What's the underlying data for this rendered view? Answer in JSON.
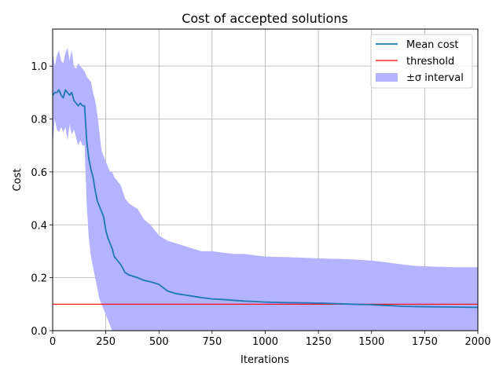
{
  "chart_data": {
    "type": "line",
    "title": "Cost of accepted solutions",
    "xlabel": "Iterations",
    "ylabel": "Cost",
    "xlim": [
      0,
      2000
    ],
    "ylim": [
      0,
      1.14
    ],
    "xticks": [
      0,
      250,
      500,
      750,
      1000,
      1250,
      1500,
      1750,
      2000
    ],
    "yticks": [
      0.0,
      0.2,
      0.4,
      0.6,
      0.8,
      1.0
    ],
    "xtick_labels": [
      "0",
      "250",
      "500",
      "750",
      "1000",
      "1250",
      "1500",
      "1750",
      "2000"
    ],
    "ytick_labels": [
      "0.0",
      "0.2",
      "0.4",
      "0.6",
      "0.8",
      "1.0"
    ],
    "grid": true,
    "legend_position": "top-right",
    "legend": {
      "mean": "Mean cost",
      "threshold": "threshold",
      "band": "±σ interval"
    },
    "colors": {
      "mean": "#1f77b4",
      "threshold": "#ff0000",
      "band": "#b3b3ff"
    },
    "threshold": 0.1,
    "series": [
      {
        "name": "Mean cost",
        "x": [
          0,
          10,
          20,
          30,
          40,
          50,
          60,
          70,
          80,
          90,
          100,
          110,
          120,
          130,
          140,
          150,
          160,
          170,
          180,
          190,
          200,
          210,
          220,
          230,
          240,
          250,
          260,
          270,
          280,
          290,
          300,
          320,
          340,
          360,
          380,
          400,
          430,
          460,
          500,
          540,
          580,
          620,
          660,
          700,
          750,
          800,
          850,
          900,
          950,
          1000,
          1100,
          1200,
          1300,
          1400,
          1500,
          1550,
          1600,
          1650,
          1700,
          1800,
          1900,
          2000
        ],
        "y": [
          0.89,
          0.9,
          0.9,
          0.91,
          0.89,
          0.88,
          0.91,
          0.9,
          0.89,
          0.9,
          0.87,
          0.86,
          0.85,
          0.86,
          0.85,
          0.85,
          0.72,
          0.65,
          0.61,
          0.58,
          0.53,
          0.49,
          0.47,
          0.45,
          0.43,
          0.38,
          0.35,
          0.33,
          0.31,
          0.28,
          0.27,
          0.25,
          0.22,
          0.21,
          0.205,
          0.2,
          0.19,
          0.185,
          0.175,
          0.15,
          0.14,
          0.135,
          0.13,
          0.125,
          0.12,
          0.118,
          0.115,
          0.112,
          0.11,
          0.108,
          0.106,
          0.105,
          0.103,
          0.1,
          0.098,
          0.096,
          0.094,
          0.092,
          0.091,
          0.09,
          0.089,
          0.088
        ]
      },
      {
        "name": "±σ interval",
        "x": [
          0,
          10,
          20,
          30,
          40,
          50,
          60,
          70,
          80,
          90,
          100,
          110,
          120,
          130,
          140,
          150,
          160,
          170,
          180,
          190,
          200,
          210,
          220,
          230,
          240,
          250,
          260,
          270,
          280,
          290,
          300,
          320,
          340,
          360,
          380,
          400,
          430,
          460,
          500,
          540,
          580,
          620,
          660,
          700,
          750,
          800,
          850,
          900,
          950,
          1000,
          1100,
          1200,
          1300,
          1400,
          1500,
          1550,
          1600,
          1650,
          1700,
          1800,
          1900,
          2000
        ],
        "upper": [
          1.05,
          1.0,
          1.04,
          1.06,
          1.02,
          1.01,
          1.05,
          1.07,
          1.02,
          1.06,
          1.0,
          0.99,
          1.01,
          1.0,
          0.99,
          0.98,
          0.96,
          0.95,
          0.94,
          0.9,
          0.87,
          0.82,
          0.75,
          0.68,
          0.66,
          0.64,
          0.62,
          0.6,
          0.6,
          0.58,
          0.57,
          0.55,
          0.5,
          0.48,
          0.47,
          0.46,
          0.42,
          0.4,
          0.36,
          0.34,
          0.33,
          0.32,
          0.31,
          0.3,
          0.3,
          0.295,
          0.29,
          0.29,
          0.285,
          0.28,
          0.278,
          0.275,
          0.272,
          0.27,
          0.265,
          0.26,
          0.255,
          0.25,
          0.245,
          0.242,
          0.24,
          0.24
        ],
        "lower": [
          0.7,
          0.8,
          0.76,
          0.75,
          0.77,
          0.75,
          0.77,
          0.72,
          0.78,
          0.74,
          0.76,
          0.73,
          0.7,
          0.72,
          0.7,
          0.7,
          0.48,
          0.35,
          0.28,
          0.24,
          0.2,
          0.16,
          0.12,
          0.1,
          0.08,
          0.06,
          0.04,
          0.02,
          0.0,
          0.0,
          0.0,
          0.0,
          0.0,
          0.0,
          0.0,
          0.0,
          0.0,
          0.0,
          0.0,
          0.0,
          0.0,
          0.0,
          0.0,
          0.0,
          0.0,
          0.0,
          0.0,
          0.0,
          0.0,
          0.0,
          0.0,
          0.0,
          0.0,
          0.0,
          0.0,
          0.0,
          0.0,
          0.0,
          0.0,
          0.0,
          0.0,
          0.0
        ]
      }
    ]
  }
}
